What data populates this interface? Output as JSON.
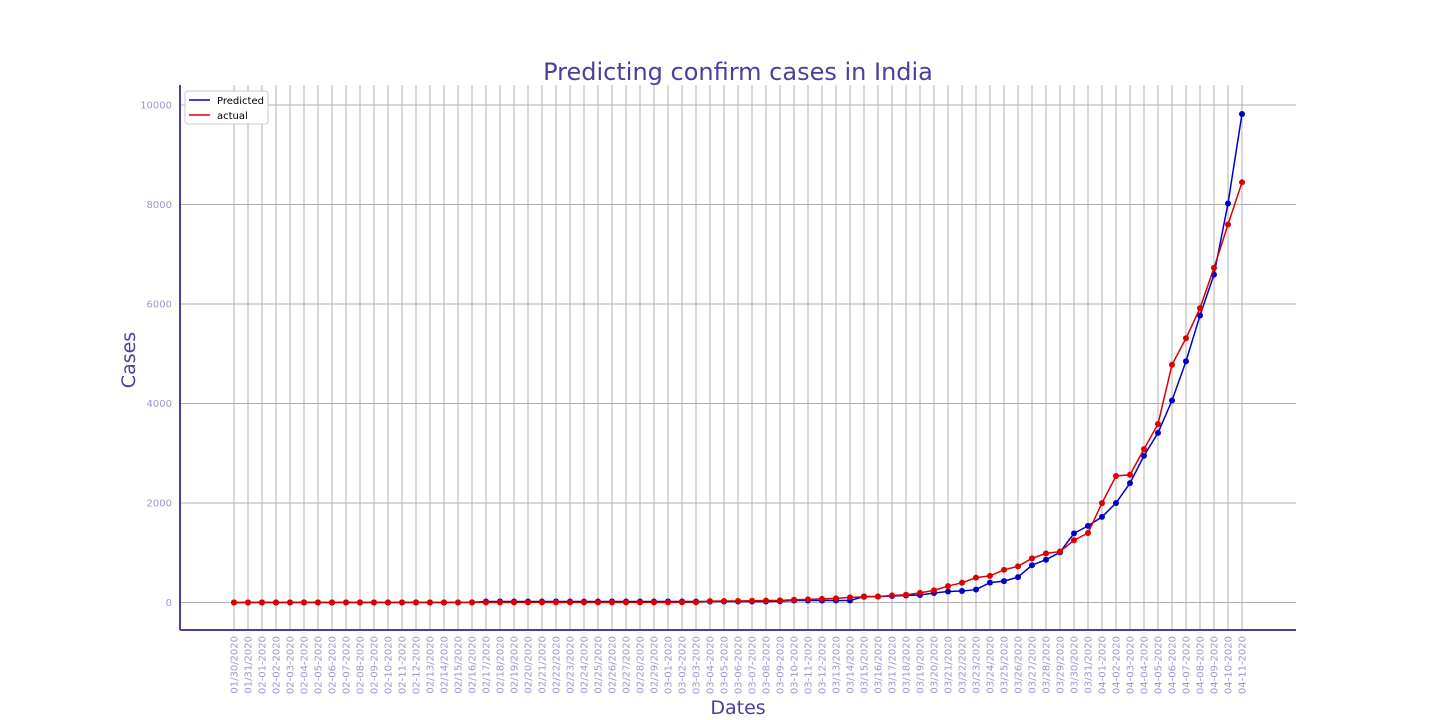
{
  "chart_data": {
    "type": "line",
    "title": "Predicting confirm cases in India",
    "xlabel": "Dates",
    "ylabel": "Cases",
    "x": [
      "01/30/2020",
      "01/31/2020",
      "02-01-2020",
      "02-02-2020",
      "02-03-2020",
      "02-04-2020",
      "02-05-2020",
      "02-06-2020",
      "02-07-2020",
      "02-08-2020",
      "02-09-2020",
      "02-10-2020",
      "02-11-2020",
      "02-12-2020",
      "02/13/2020",
      "02/14/2020",
      "02/15/2020",
      "02/16/2020",
      "02/17/2020",
      "02/18/2020",
      "02/19/2020",
      "02/20/2020",
      "02/21/2020",
      "02/22/2020",
      "02/23/2020",
      "02/24/2020",
      "02/25/2020",
      "02/26/2020",
      "02/27/2020",
      "02/28/2020",
      "02/29/2020",
      "03-01-2020",
      "03-02-2020",
      "03-03-2020",
      "03-04-2020",
      "03-05-2020",
      "03-06-2020",
      "03-07-2020",
      "03-08-2020",
      "03-09-2020",
      "03-10-2020",
      "03-11-2020",
      "03-12-2020",
      "03/13/2020",
      "03/14/2020",
      "03/15/2020",
      "03/16/2020",
      "03/17/2020",
      "03/18/2020",
      "03/19/2020",
      "03/20/2020",
      "03/21/2020",
      "03/22/2020",
      "03/23/2020",
      "03/24/2020",
      "03/25/2020",
      "03/26/2020",
      "03/27/2020",
      "03/28/2020",
      "03/29/2020",
      "03/30/2020",
      "03/31/2020",
      "04-01-2020",
      "04-02-2020",
      "04-03-2020",
      "04-04-2020",
      "04-05-2020",
      "04-06-2020",
      "04-07-2020",
      "04-08-2020",
      "04-09-2020",
      "04-10-2020",
      "04-11-2020"
    ],
    "series": [
      {
        "name": "Predicted",
        "color": "#0000cc",
        "values": [
          0,
          0,
          0,
          0,
          0,
          0,
          0,
          0,
          0,
          0,
          0,
          0,
          0,
          0,
          0,
          0,
          0,
          3,
          20,
          20,
          20,
          20,
          20,
          20,
          20,
          20,
          20,
          20,
          20,
          20,
          20,
          20,
          20,
          20,
          20,
          20,
          20,
          20,
          20,
          25,
          40,
          40,
          40,
          40,
          40,
          120,
          120,
          130,
          140,
          150,
          190,
          220,
          230,
          260,
          400,
          430,
          510,
          750,
          860,
          1010,
          1390,
          1540,
          1720,
          2000,
          2400,
          2950,
          3410,
          4060,
          4850,
          5770,
          6590,
          8020,
          9820
        ]
      },
      {
        "name": "actual",
        "color": "#dd0000",
        "values": [
          1,
          1,
          2,
          3,
          3,
          3,
          3,
          3,
          3,
          3,
          3,
          3,
          3,
          3,
          3,
          3,
          3,
          3,
          3,
          3,
          3,
          3,
          3,
          3,
          3,
          3,
          3,
          3,
          3,
          3,
          3,
          3,
          5,
          5,
          28,
          30,
          31,
          34,
          39,
          43,
          56,
          62,
          73,
          82,
          102,
          113,
          119,
          142,
          156,
          194,
          244,
          330,
          396,
          499,
          536,
          657,
          727,
          887,
          987,
          1024,
          1251,
          1397,
          1998,
          2543,
          2567,
          3082,
          3588,
          4778,
          5311,
          5916,
          6725,
          7598,
          8446
        ]
      }
    ],
    "ylim": [
      -550,
      10400
    ],
    "yticks": [
      0,
      2000,
      4000,
      6000,
      8000,
      10000
    ],
    "grid": "x and y",
    "legend": "top-left",
    "legend_labels": [
      "Predicted",
      "actual"
    ],
    "axis_color": "#4b3f9e"
  }
}
